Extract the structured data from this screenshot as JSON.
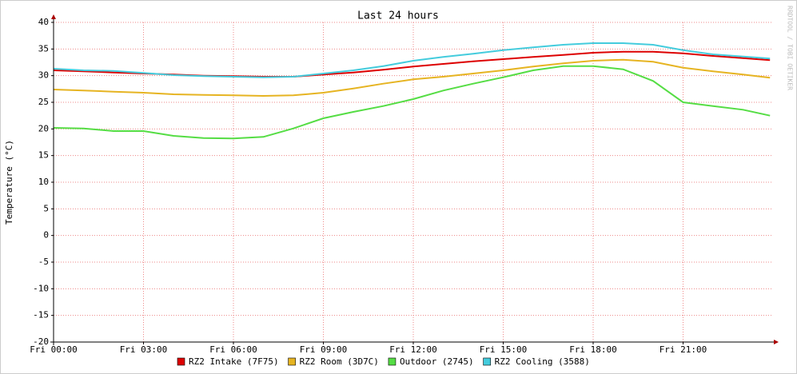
{
  "chart_data": {
    "type": "line",
    "title": "Last 24 hours",
    "y_label": "Temperature (°C)",
    "side_note": "RRDTOOL / TOBI OETIKER",
    "x": [
      0,
      1,
      2,
      3,
      4,
      5,
      6,
      7,
      8,
      9,
      10,
      11,
      12,
      13,
      14,
      15,
      16,
      17,
      18,
      19,
      20,
      21,
      22,
      23,
      23.9
    ],
    "xlim": [
      0,
      24
    ],
    "xticks": [
      {
        "value": 0,
        "label": "Fri 00:00"
      },
      {
        "value": 3,
        "label": "Fri 03:00"
      },
      {
        "value": 6,
        "label": "Fri 06:00"
      },
      {
        "value": 9,
        "label": "Fri 09:00"
      },
      {
        "value": 12,
        "label": "Fri 12:00"
      },
      {
        "value": 15,
        "label": "Fri 15:00"
      },
      {
        "value": 18,
        "label": "Fri 18:00"
      },
      {
        "value": 21,
        "label": "Fri 21:00"
      }
    ],
    "ylim": [
      -20,
      40
    ],
    "yticks": [
      -20,
      -15,
      -10,
      -5,
      0,
      5,
      10,
      15,
      20,
      25,
      30,
      35,
      40
    ],
    "grid": true,
    "series": [
      {
        "name": "RZ2 Intake (7F75)",
        "color": "#dd0000",
        "values": [
          31,
          30.8,
          30.6,
          30.4,
          30.2,
          30,
          29.9,
          29.8,
          29.8,
          30.2,
          30.6,
          31.1,
          31.7,
          32.2,
          32.7,
          33.1,
          33.5,
          33.9,
          34.3,
          34.5,
          34.5,
          34.2,
          33.7,
          33.3,
          32.9
        ]
      },
      {
        "name": "RZ2 Room (3D7C)",
        "color": "#e6b422",
        "values": [
          27.4,
          27.2,
          27,
          26.8,
          26.5,
          26.4,
          26.3,
          26.2,
          26.3,
          26.8,
          27.6,
          28.5,
          29.3,
          29.8,
          30.4,
          31,
          31.7,
          32.3,
          32.8,
          33,
          32.6,
          31.5,
          30.8,
          30.2,
          29.6
        ]
      },
      {
        "name": "Outdoor (2745)",
        "color": "#55dd44",
        "values": [
          20.2,
          20.1,
          19.6,
          19.6,
          18.7,
          18.3,
          18.2,
          18.5,
          20.1,
          22,
          23.2,
          24.3,
          25.6,
          27.2,
          28.5,
          29.7,
          31,
          31.8,
          31.8,
          31.2,
          29,
          25,
          24.3,
          23.6,
          22.5
        ]
      },
      {
        "name": "RZ2 Cooling (3588)",
        "color": "#44ccdd",
        "values": [
          31.3,
          31,
          30.9,
          30.5,
          30.1,
          29.9,
          29.8,
          29.7,
          29.8,
          30.4,
          31,
          31.8,
          32.8,
          33.5,
          34.1,
          34.8,
          35.3,
          35.8,
          36.1,
          36.1,
          35.8,
          34.8,
          34,
          33.6,
          33.2
        ]
      }
    ]
  }
}
